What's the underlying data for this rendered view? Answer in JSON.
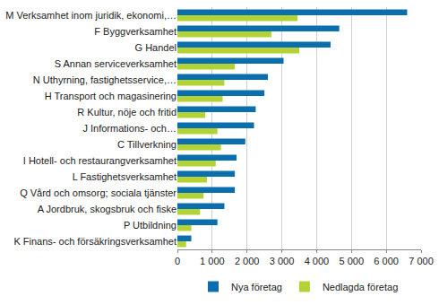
{
  "chart_data": {
    "type": "bar",
    "orientation": "horizontal",
    "categories": [
      "M Verksamhet inom juridik, ekonomi,…",
      "F Byggverksamhet",
      "G Handel",
      "S Annan serviceverksamhet",
      "N Uthyrning, fastighetsservice,…",
      "H Transport och magasinering",
      "R Kultur, nöje och fritid",
      "J Informations- och…",
      "C Tillverkning",
      "I Hotell- och restaurangverksamhet",
      "L Fastighetsverksamhet",
      "Q Vård och omsorg; sociala tjänster",
      "A Jordbruk, skogsbruk och fiske",
      "P Utbildning",
      "K Finans- och försäkringsverksamhet"
    ],
    "series": [
      {
        "name": "Nya företag",
        "color": "#0a6fac",
        "values": [
          6600,
          4650,
          4400,
          3050,
          2600,
          2500,
          2250,
          2200,
          1950,
          1700,
          1650,
          1650,
          1350,
          1150,
          400
        ]
      },
      {
        "name": "Nedlagda företag",
        "color": "#b3d335",
        "values": [
          3450,
          2700,
          3500,
          1650,
          1350,
          1300,
          800,
          1150,
          1250,
          1100,
          850,
          750,
          650,
          400,
          250
        ]
      }
    ],
    "xlim": [
      0,
      7000
    ],
    "xticks": [
      0,
      {
        "value": 1000,
        "label": "1 000"
      },
      {
        "value": 2000,
        "label": "2 000"
      },
      {
        "value": 3000,
        "label": "3 000"
      },
      {
        "value": 4000,
        "label": "4 000"
      },
      {
        "value": 5000,
        "label": "5 000"
      },
      {
        "value": 6000,
        "label": "6 000"
      },
      {
        "value": 7000,
        "label": "7 000"
      }
    ],
    "grid": true,
    "legend": "bottom"
  }
}
